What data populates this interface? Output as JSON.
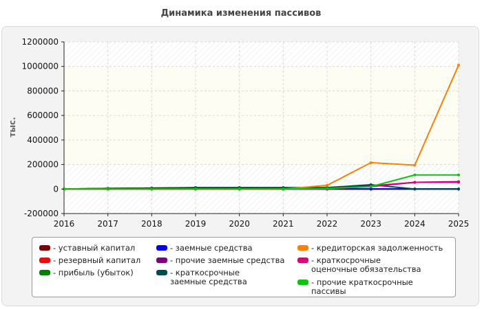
{
  "title": "Динамика изменения пассивов",
  "chart_data": {
    "type": "line",
    "title": "Динамика изменения пассивов",
    "xlabel": "",
    "ylabel": "тыс.",
    "x": [
      2016,
      2017,
      2018,
      2019,
      2020,
      2021,
      2022,
      2023,
      2024,
      2025
    ],
    "x_ticks": [
      "2016",
      "2017",
      "2018",
      "2019",
      "2020",
      "2021",
      "2022",
      "2023",
      "2024",
      "2025"
    ],
    "ylim": [
      -200000,
      1200000
    ],
    "y_ticks": [
      "1200000",
      "1000000",
      "800000",
      "600000",
      "400000",
      "200000",
      "0",
      "-200000"
    ],
    "y_tick_values": [
      1200000,
      1000000,
      800000,
      600000,
      400000,
      200000,
      0,
      -200000
    ],
    "grid": true,
    "legend_position": "bottom",
    "series": [
      {
        "name": "- уставный капитал",
        "color": "#800000",
        "values": [
          0,
          0,
          0,
          0,
          0,
          0,
          0,
          0,
          0,
          0
        ]
      },
      {
        "name": "- резервный капитал",
        "color": "#ff0000",
        "values": [
          0,
          0,
          0,
          0,
          0,
          0,
          0,
          0,
          0,
          0
        ]
      },
      {
        "name": "- прибыль (убыток)",
        "color": "#008000",
        "values": [
          0,
          0,
          0,
          0,
          0,
          0,
          0,
          0,
          0,
          0
        ]
      },
      {
        "name": "- заемные средства",
        "color": "#0000ff",
        "values": [
          0,
          0,
          0,
          0,
          0,
          0,
          0,
          0,
          0,
          0
        ]
      },
      {
        "name": "- прочие заемные средства",
        "color": "#800080",
        "values": [
          0,
          5000,
          8000,
          10000,
          10000,
          10000,
          10000,
          25000,
          55000,
          60000
        ]
      },
      {
        "name": "- краткосрочные заемные средства",
        "color": "#004d4d",
        "values": [
          0,
          5000,
          8000,
          12000,
          12000,
          12000,
          12000,
          35000,
          0,
          0
        ]
      },
      {
        "name": "- кредиторская задолженность",
        "color": "#ff8000",
        "values": [
          0,
          0,
          0,
          0,
          0,
          0,
          30000,
          215000,
          195000,
          1010000
        ]
      },
      {
        "name": "- краткосрочные оценочные обязательства",
        "color": "#e0007a",
        "values": [
          0,
          0,
          0,
          0,
          0,
          0,
          0,
          20000,
          55000,
          55000
        ]
      },
      {
        "name": "- прочие краткосрочные пассивы",
        "color": "#00cc00",
        "values": [
          0,
          0,
          0,
          0,
          0,
          0,
          5000,
          20000,
          115000,
          115000
        ]
      }
    ]
  }
}
